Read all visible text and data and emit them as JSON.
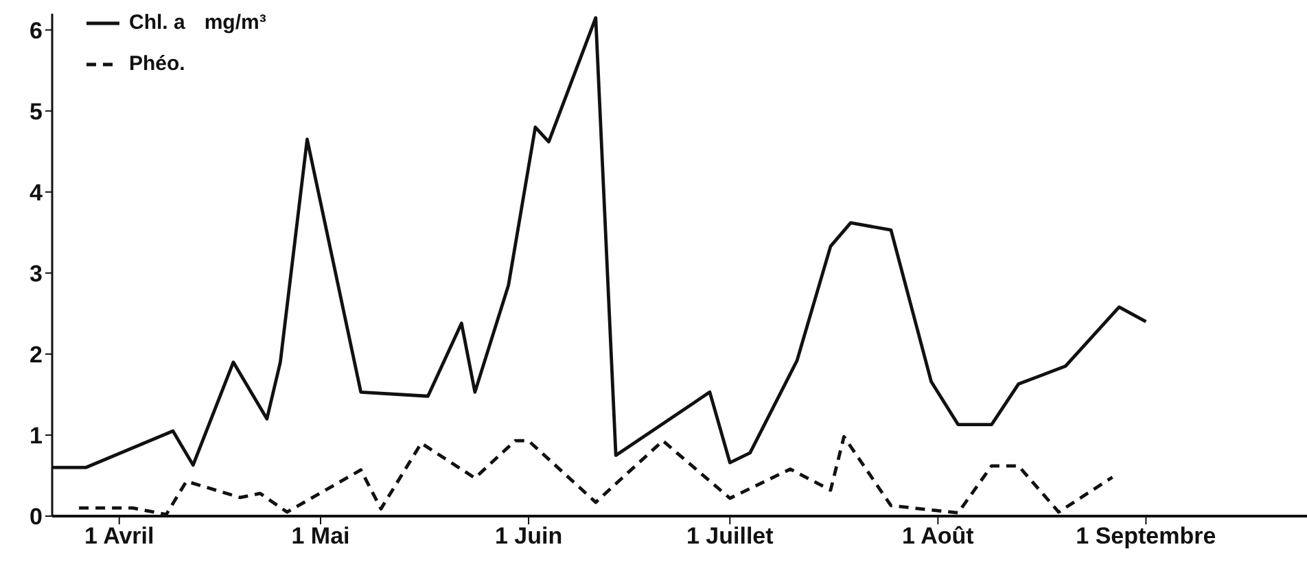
{
  "chart_data": {
    "type": "line",
    "ylabel": "mg/m³",
    "legend": "top left",
    "marker": "none",
    "grid": false,
    "xlim": [
      "--03-22",
      "--09-25"
    ],
    "xticks": [
      {
        "value": "--04-01",
        "label": "1 Avril"
      },
      {
        "value": "--05-01",
        "label": "1 Mai"
      },
      {
        "value": "--06-01",
        "label": "1 Juin"
      },
      {
        "value": "--07-01",
        "label": "1 Juillet"
      },
      {
        "value": "--08-01",
        "label": "1 Août"
      },
      {
        "value": "--09-01",
        "label": "1 Septembre"
      }
    ],
    "ylim": [
      0,
      6.2
    ],
    "yticks": [
      0,
      1,
      2,
      3,
      4,
      5,
      6
    ],
    "series": [
      {
        "name": "Chl. a",
        "color": "#111111",
        "line_style": "solid",
        "x": [
          "--03-22",
          "--03-27",
          "--04-09",
          "--04-12",
          "--04-18",
          "--04-23",
          "--04-25",
          "--04-29",
          "--05-07",
          "--05-17",
          "--05-22",
          "--05-24",
          "--05-29",
          "--06-02",
          "--06-04",
          "--06-11",
          "--06-14",
          "--06-28",
          "--07-01",
          "--07-04",
          "--07-11",
          "--07-16",
          "--07-19",
          "--07-25",
          "--07-31",
          "--08-04",
          "--08-09",
          "--08-13",
          "--08-20",
          "--08-28",
          "--09-01"
        ],
        "values": [
          0.6,
          0.6,
          1.05,
          0.63,
          1.9,
          1.2,
          1.9,
          4.65,
          1.53,
          1.48,
          2.38,
          1.53,
          2.85,
          4.8,
          4.62,
          6.15,
          0.75,
          1.53,
          0.66,
          0.78,
          1.92,
          3.33,
          3.62,
          3.53,
          1.66,
          1.13,
          1.13,
          1.63,
          1.85,
          2.58,
          2.4
        ]
      },
      {
        "name": "Phéo.",
        "color": "#111111",
        "line_style": "dashed",
        "x": [
          "--03-26",
          "--04-03",
          "--04-08",
          "--04-11",
          "--04-19",
          "--04-22",
          "--04-26",
          "--05-07",
          "--05-10",
          "--05-16",
          "--05-24",
          "--05-30",
          "--06-01",
          "--06-11",
          "--06-21",
          "--07-01",
          "--07-10",
          "--07-16",
          "--07-18",
          "--07-25",
          "--08-04",
          "--08-09",
          "--08-13",
          "--08-19",
          "--08-27"
        ],
        "values": [
          0.1,
          0.1,
          0.02,
          0.43,
          0.23,
          0.28,
          0.05,
          0.57,
          0.09,
          0.9,
          0.47,
          0.93,
          0.93,
          0.17,
          0.93,
          0.22,
          0.58,
          0.32,
          0.98,
          0.13,
          0.04,
          0.62,
          0.62,
          0.05,
          0.48
        ]
      }
    ]
  }
}
